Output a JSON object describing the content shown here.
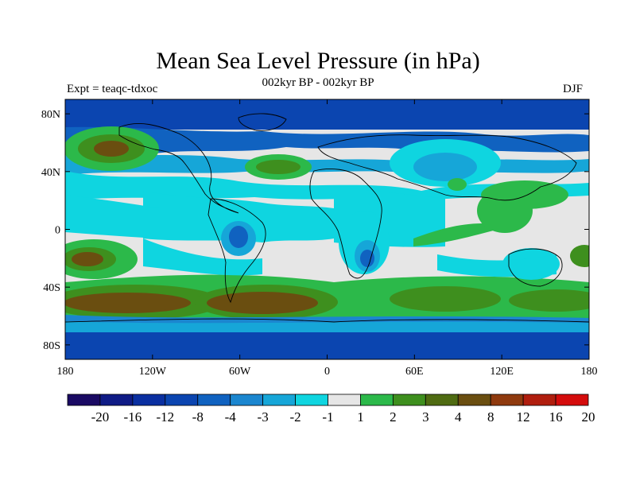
{
  "header": {
    "title": "Mean Sea Level Pressure (in hPa)",
    "subtitle": "002kyr BP - 002kyr BP",
    "left_label": "Expt = teaqc-tdxoc",
    "right_label": "DJF"
  },
  "map": {
    "projection": "cylindrical equidistant",
    "lon_range": [
      -180,
      180
    ],
    "lat_range": [
      -90,
      90
    ],
    "x_ticks": [
      "180",
      "120W",
      "60W",
      "0",
      "60E",
      "120E",
      "180"
    ],
    "y_ticks": [
      "80N",
      "40N",
      "0",
      "40S",
      "80S"
    ],
    "continent_outline_color": "#000000",
    "missing_color": "#e6e6e6"
  },
  "colorbar": {
    "labels": [
      "-20",
      "-16",
      "-12",
      "-8",
      "-4",
      "-3",
      "-2",
      "-1",
      "1",
      "2",
      "3",
      "4",
      "8",
      "12",
      "16",
      "20"
    ],
    "colors": [
      "#1a0a63",
      "#0f1b85",
      "#0a2fa0",
      "#0b45b0",
      "#1062c0",
      "#1b86cf",
      "#16a6d8",
      "#0fd5e0",
      "#e6e6e6",
      "#2cb94a",
      "#3e8f1e",
      "#4f6b12",
      "#6a4e10",
      "#8f3a0e",
      "#b01e0e",
      "#d40c0c"
    ]
  }
}
